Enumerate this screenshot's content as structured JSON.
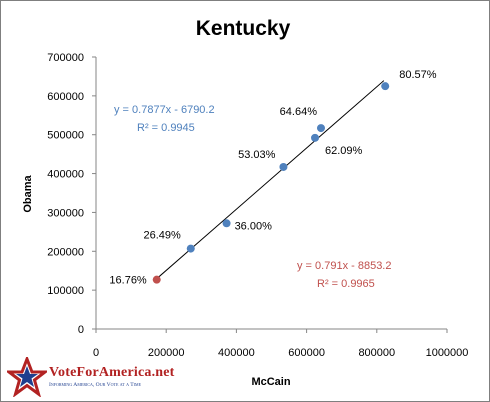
{
  "chart_data": {
    "type": "scatter",
    "title": "Kentucky",
    "xlabel": "McCain",
    "ylabel": "Obama",
    "xlim": [
      0,
      1000000
    ],
    "ylim": [
      0,
      700000
    ],
    "x_ticks": [
      "0",
      "200000",
      "400000",
      "600000",
      "800000",
      "1000000"
    ],
    "y_ticks": [
      "0",
      "100000",
      "200000",
      "300000",
      "400000",
      "500000",
      "600000",
      "700000"
    ],
    "grid": false,
    "points": [
      {
        "x": 173000,
        "y": 127000,
        "label": "16.76%",
        "color": "#c0504d"
      },
      {
        "x": 270000,
        "y": 207000,
        "label": "26.49%",
        "color": "#4f81bd"
      },
      {
        "x": 372000,
        "y": 272000,
        "label": "36.00%",
        "color": "#4f81bd"
      },
      {
        "x": 534000,
        "y": 417000,
        "label": "53.03%",
        "color": "#4f81bd"
      },
      {
        "x": 624000,
        "y": 492000,
        "label": "62.09%",
        "color": "#4f81bd"
      },
      {
        "x": 641000,
        "y": 517000,
        "label": "64.64%",
        "color": "#4f81bd"
      },
      {
        "x": 824000,
        "y": 625000,
        "label": "80.57%",
        "color": "#4f81bd"
      }
    ],
    "trendline": {
      "x0": 173000,
      "x1": 820000,
      "slope": 0.7877,
      "intercept": -6790.2
    },
    "equations": [
      {
        "line1": "y = 0.7877x - 6790.2",
        "line2": "R² = 0.9945",
        "color": "#4f81bd"
      },
      {
        "line1": "y = 0.791x - 8853.2",
        "line2": "R² = 0.9965",
        "color": "#c0504d"
      }
    ]
  },
  "logo": {
    "name": "VoteForAmerica.net",
    "tagline": "Informing America, Our Vote at a Time"
  }
}
